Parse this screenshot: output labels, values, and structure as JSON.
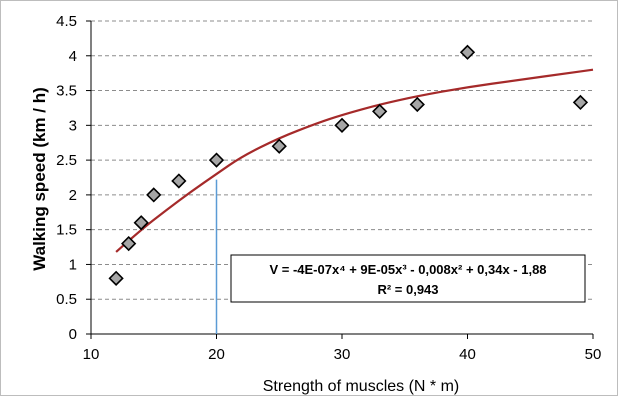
{
  "chart_data": {
    "type": "scatter",
    "xlabel": "Strength of muscles (N * m)",
    "ylabel": "Walking speed (km / h)",
    "xlim": [
      10,
      50
    ],
    "ylim": [
      0,
      4.5
    ],
    "x_ticks": [
      "10",
      "20",
      "30",
      "40",
      "50"
    ],
    "y_ticks": [
      "0",
      "0.5",
      "1",
      "1.5",
      "2",
      "2.5",
      "3",
      "3.5",
      "4",
      "4.5"
    ],
    "grid": "horizontal dashed",
    "points": [
      {
        "x": 12,
        "y": 0.8
      },
      {
        "x": 13,
        "y": 1.3
      },
      {
        "x": 14,
        "y": 1.6
      },
      {
        "x": 15,
        "y": 2.0
      },
      {
        "x": 17,
        "y": 2.2
      },
      {
        "x": 20,
        "y": 2.5
      },
      {
        "x": 25,
        "y": 2.7
      },
      {
        "x": 30,
        "y": 3.0
      },
      {
        "x": 33,
        "y": 3.2
      },
      {
        "x": 36,
        "y": 3.3
      },
      {
        "x": 40,
        "y": 4.05
      },
      {
        "x": 49,
        "y": 3.33
      }
    ],
    "trendline": {
      "type": "polynomial",
      "order": 4,
      "color": "#a52a2a",
      "x": [
        12,
        14,
        16,
        18,
        20,
        22,
        25,
        28,
        30,
        33,
        36,
        40,
        44,
        48,
        50
      ],
      "y": [
        1.18,
        1.5,
        1.78,
        2.05,
        2.3,
        2.55,
        2.82,
        3.03,
        3.15,
        3.3,
        3.42,
        3.55,
        3.65,
        3.75,
        3.8
      ]
    },
    "reference_line": {
      "x": 20,
      "y_top": 2.22,
      "color": "#5b9bd5"
    },
    "equation": "V = -4E-07x⁴ + 9E-05x³ - 0,008x² + 0,34x - 1,88",
    "r_squared": "R² = 0,943",
    "marker_color": "#a6a6a6"
  }
}
